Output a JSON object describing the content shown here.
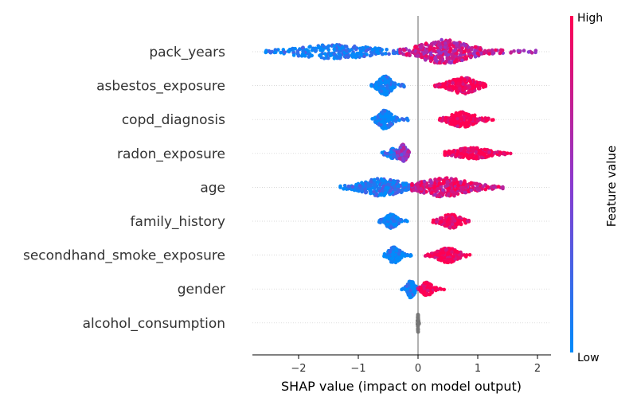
{
  "chart_data": {
    "type": "scatter",
    "subtype": "shap-beeswarm",
    "xlabel": "SHAP value (impact on model output)",
    "xlim": [
      -2.75,
      2.2
    ],
    "xticks": [
      -2,
      -1,
      0,
      1,
      2
    ],
    "xtick_labels": [
      "−2",
      "−1",
      "0",
      "1",
      "2"
    ],
    "features": [
      {
        "name": "pack_years",
        "groups": [
          {
            "center": -1.4,
            "spread": 0.55,
            "tail_min": -2.55,
            "tail_max": -0.3,
            "level": 0.05,
            "width": 0.55,
            "n": 260
          },
          {
            "center": 0.45,
            "spread": 0.35,
            "tail_min": -0.3,
            "tail_max": 2.0,
            "level": 0.75,
            "width": 0.95,
            "n": 420
          }
        ]
      },
      {
        "name": "asbestos_exposure",
        "groups": [
          {
            "center": -0.55,
            "spread": 0.09,
            "tail_min": -0.78,
            "tail_max": -0.18,
            "level": 0.0,
            "width": 0.75,
            "n": 180
          },
          {
            "center": 0.75,
            "spread": 0.18,
            "tail_min": 0.22,
            "tail_max": 1.13,
            "level": 1.0,
            "width": 0.65,
            "n": 220
          }
        ]
      },
      {
        "name": "copd_diagnosis",
        "groups": [
          {
            "center": -0.55,
            "spread": 0.09,
            "tail_min": -0.78,
            "tail_max": -0.15,
            "level": 0.0,
            "width": 0.75,
            "n": 180
          },
          {
            "center": 0.75,
            "spread": 0.18,
            "tail_min": 0.35,
            "tail_max": 1.3,
            "level": 1.0,
            "width": 0.6,
            "n": 220
          }
        ]
      },
      {
        "name": "radon_exposure",
        "groups": [
          {
            "center": -0.38,
            "spread": 0.1,
            "tail_min": -0.7,
            "tail_max": -0.2,
            "level": 0.15,
            "width": 0.45,
            "n": 90
          },
          {
            "center": -0.25,
            "spread": 0.05,
            "tail_min": -0.35,
            "tail_max": -0.15,
            "level": 0.55,
            "width": 0.7,
            "n": 80
          },
          {
            "center": 0.9,
            "spread": 0.25,
            "tail_min": 0.45,
            "tail_max": 1.55,
            "level": 1.0,
            "width": 0.45,
            "n": 200
          }
        ]
      },
      {
        "name": "age",
        "groups": [
          {
            "center": -0.6,
            "spread": 0.28,
            "tail_min": -1.3,
            "tail_max": 0.1,
            "level": 0.1,
            "width": 0.7,
            "n": 300
          },
          {
            "center": 0.45,
            "spread": 0.35,
            "tail_min": -0.1,
            "tail_max": 1.42,
            "level": 0.85,
            "width": 0.75,
            "n": 330
          }
        ]
      },
      {
        "name": "family_history",
        "groups": [
          {
            "center": -0.45,
            "spread": 0.08,
            "tail_min": -0.65,
            "tail_max": -0.15,
            "level": 0.0,
            "width": 0.55,
            "n": 140
          },
          {
            "center": 0.55,
            "spread": 0.13,
            "tail_min": 0.25,
            "tail_max": 0.85,
            "level": 1.0,
            "width": 0.55,
            "n": 170
          }
        ]
      },
      {
        "name": "secondhand_smoke_exposure",
        "groups": [
          {
            "center": -0.4,
            "spread": 0.08,
            "tail_min": -0.65,
            "tail_max": -0.1,
            "level": 0.0,
            "width": 0.65,
            "n": 160
          },
          {
            "center": 0.5,
            "spread": 0.14,
            "tail_min": 0.12,
            "tail_max": 0.92,
            "level": 1.0,
            "width": 0.6,
            "n": 190
          }
        ]
      },
      {
        "name": "gender",
        "groups": [
          {
            "center": -0.12,
            "spread": 0.05,
            "tail_min": -0.32,
            "tail_max": -0.02,
            "level": 0.0,
            "width": 0.7,
            "n": 100
          },
          {
            "center": 0.15,
            "spread": 0.07,
            "tail_min": 0.0,
            "tail_max": 0.45,
            "level": 1.0,
            "width": 0.55,
            "n": 110
          }
        ]
      },
      {
        "name": "alcohol_consumption",
        "groups": [
          {
            "center": 0.0,
            "spread": 0.005,
            "tail_min": -0.01,
            "tail_max": 0.02,
            "level": -1,
            "width": 0.75,
            "n": 60
          }
        ]
      }
    ],
    "colorbar": {
      "title": "Feature value",
      "high_label": "High",
      "low_label": "Low",
      "low_color": "#008bfb",
      "mid_color": "#8a3acf",
      "high_color": "#ff0052"
    },
    "missing_color": "#777777",
    "zero_line_color": "#999999",
    "grid_color": "#cccccc"
  }
}
